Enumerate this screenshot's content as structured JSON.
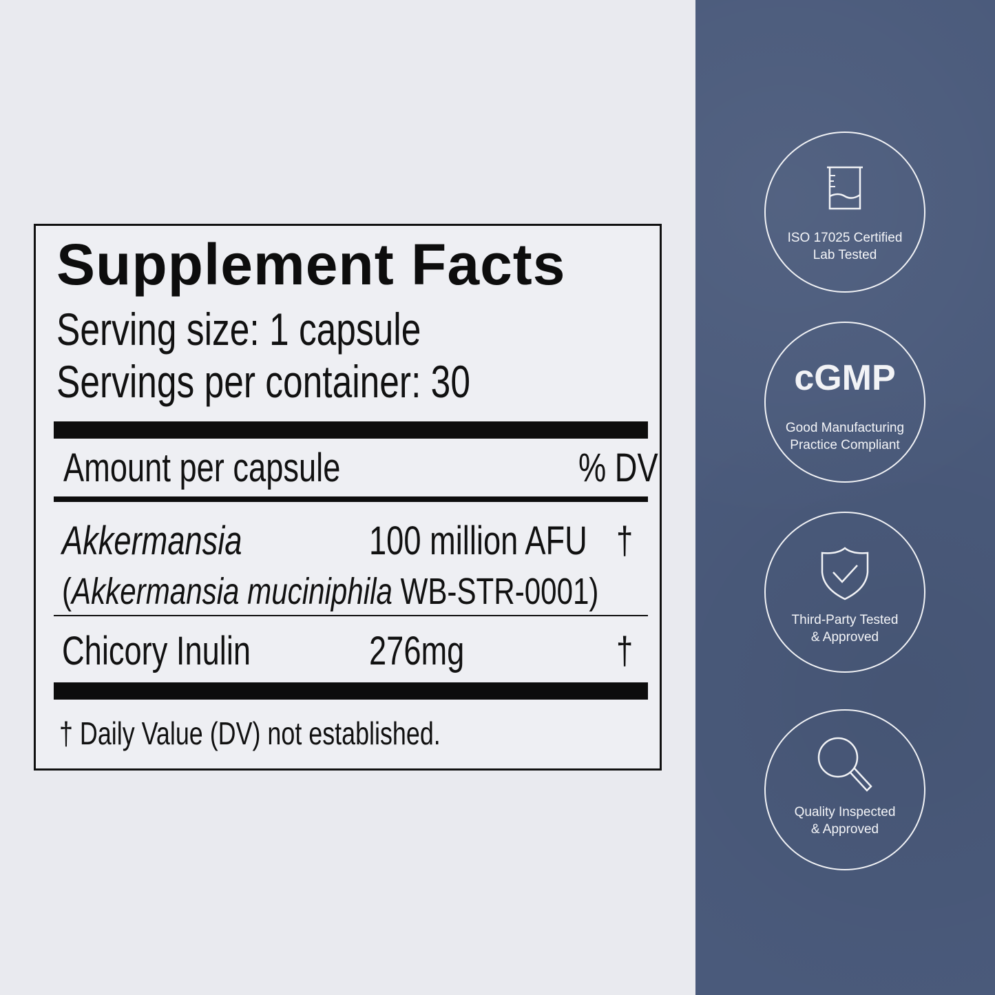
{
  "label": {
    "title": "Supplement Facts",
    "serving_size": "Serving size: 1 capsule",
    "servings_per_container": "Servings per container: 30",
    "amount_header": "Amount per capsule",
    "dv_header": "% DV",
    "ingredients": [
      {
        "name": "Akkermansia",
        "amount": "100 million AFU",
        "dv": "†",
        "sub_open": "(",
        "sub_italic": "Akkermansia muciniphila",
        "sub_rest": " WB-STR-0001)"
      },
      {
        "name": "Chicory Inulin",
        "amount": "276mg",
        "dv": "†"
      }
    ],
    "footnote": "† Daily Value (DV) not established."
  },
  "badges": [
    {
      "icon": "beaker-icon",
      "line1": "ISO 17025 Certified",
      "line2": "Lab Tested"
    },
    {
      "icon": "cgmp-logo",
      "logo_text": "cGMP",
      "line1": "Good Manufacturing",
      "line2": "Practice Compliant"
    },
    {
      "icon": "shield-check-icon",
      "line1": "Third-Party Tested",
      "line2": "& Approved"
    },
    {
      "icon": "magnifier-icon",
      "line1": "Quality Inspected",
      "line2": "& Approved"
    }
  ],
  "colors": {
    "panel": "#4a5a7b",
    "background": "#e9eaef",
    "ink": "#0d0d0d"
  }
}
